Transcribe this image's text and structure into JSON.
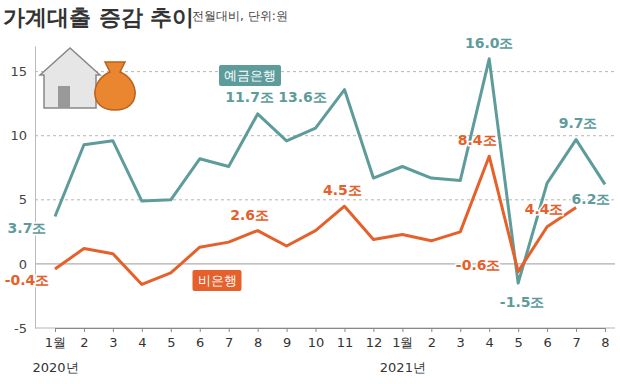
{
  "chart_data": {
    "type": "line",
    "title": "가계대출 증감 추이",
    "subtitle": "전월대비, 단위:원",
    "categories": [
      "1월\n2020년",
      "2",
      "3",
      "4",
      "5",
      "6",
      "7",
      "8",
      "9",
      "10",
      "11",
      "12",
      "1월\n2021년",
      "2",
      "3",
      "4",
      "5",
      "6",
      "7",
      "8"
    ],
    "series": [
      {
        "name": "예금은행",
        "color": "#5e9c9c",
        "values": [
          3.7,
          9.3,
          9.6,
          4.9,
          5.0,
          8.2,
          7.6,
          11.7,
          9.6,
          10.6,
          13.6,
          6.7,
          7.6,
          6.7,
          6.5,
          16.0,
          -1.5,
          6.3,
          9.7,
          6.2
        ],
        "value_labels": [
          "3.7조",
          null,
          null,
          null,
          null,
          null,
          null,
          "11.7조",
          null,
          null,
          "13.6조",
          null,
          null,
          null,
          null,
          "16.0조",
          "-1.5조",
          null,
          "9.7조",
          "6.2조"
        ]
      },
      {
        "name": "비은행",
        "color": "#e5602a",
        "values": [
          -0.4,
          1.2,
          0.8,
          -1.6,
          -0.7,
          1.3,
          1.7,
          2.6,
          1.4,
          2.6,
          4.5,
          1.9,
          2.3,
          1.8,
          2.5,
          8.4,
          -0.6,
          2.9,
          4.4,
          null
        ],
        "value_labels": [
          "-0.4조",
          null,
          null,
          null,
          null,
          null,
          null,
          "2.6조",
          null,
          null,
          "4.5조",
          null,
          null,
          null,
          null,
          "8.4조",
          "-0.6조",
          null,
          "4.4조",
          null
        ]
      }
    ],
    "ylim": [
      -5,
      17
    ],
    "yticks": [
      -5,
      0,
      5,
      10,
      15
    ],
    "grid": true,
    "data_labels": true
  }
}
